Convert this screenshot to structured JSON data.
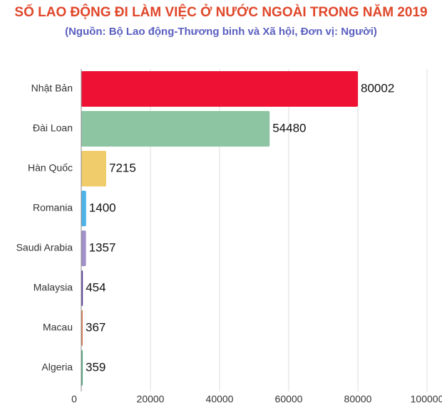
{
  "chart_data": {
    "type": "hbar",
    "title": "SỐ LAO ĐỘNG ĐI LÀM VIỆC Ở NƯỚC NGOÀI TRONG NĂM 2019",
    "subtitle": "(Nguồn:  Bộ Lao động-Thương binh và Xã hội, Đơn vị: Người)",
    "categories": [
      "Nhật Bản",
      "Đài Loan",
      "Hàn Quốc",
      "Romania",
      "Saudi Arabia",
      "Malaysia",
      "Macau",
      "Algeria"
    ],
    "values": [
      80002,
      54480,
      7215,
      1400,
      1357,
      454,
      367,
      359
    ],
    "colors": [
      "#ee1133",
      "#8dc5a3",
      "#f0cc6a",
      "#4fb3e8",
      "#a08fc8",
      "#5b3fa0",
      "#e07a4a",
      "#4cab7a"
    ],
    "xlim": [
      0,
      100000
    ],
    "xticks": [
      0,
      20000,
      40000,
      60000,
      80000,
      100000
    ],
    "grid": true
  }
}
